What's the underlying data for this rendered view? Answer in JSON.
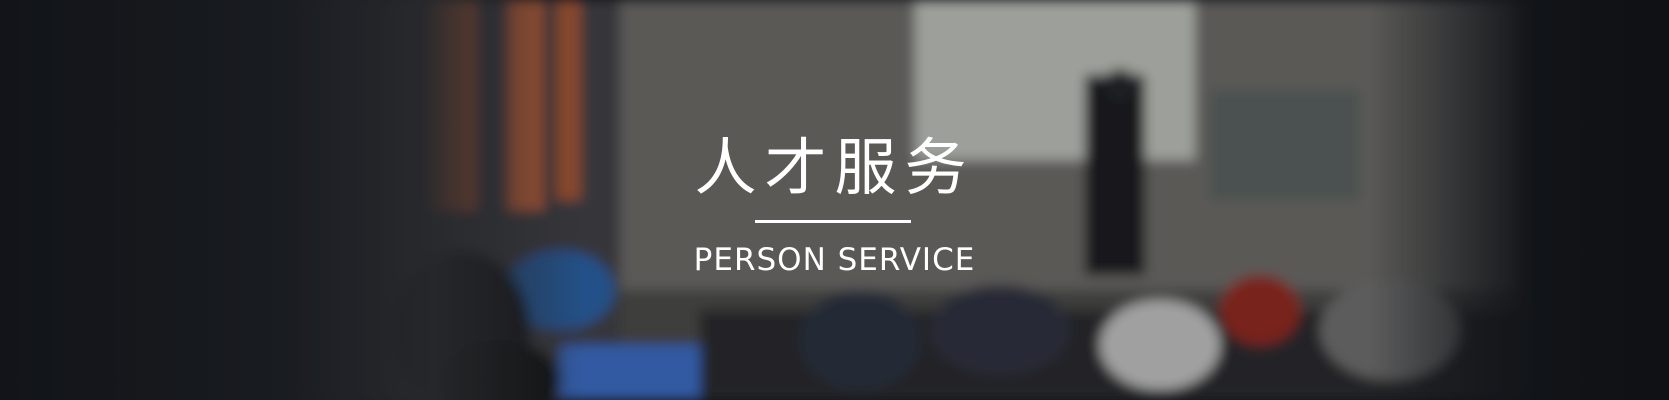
{
  "banner": {
    "title": "人才服务",
    "subtitle": "PERSON SERVICE"
  }
}
